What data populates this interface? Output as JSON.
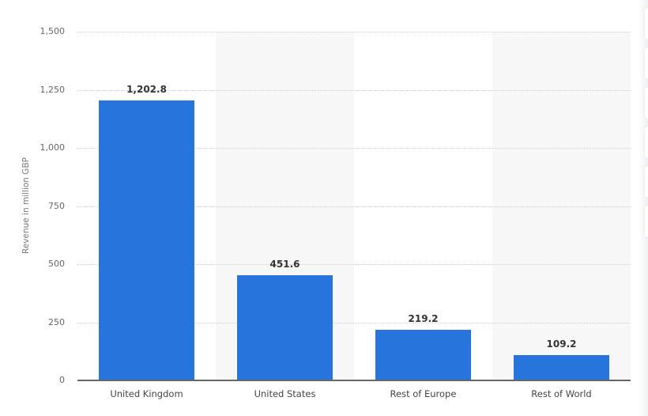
{
  "chart_data": {
    "type": "bar",
    "title": "",
    "xlabel": "",
    "ylabel": "Revenue in million GBP",
    "categories": [
      "United Kingdom",
      "United States",
      "Rest of Europe",
      "Rest of World"
    ],
    "values": [
      1202.8,
      451.6,
      219.2,
      109.2
    ],
    "value_labels": [
      "1,202.8",
      "451.6",
      "219.2",
      "109.2"
    ],
    "ylim": [
      0,
      1500
    ],
    "yticks": [
      0,
      250,
      500,
      750,
      1000,
      1250,
      1500
    ],
    "ytick_labels": [
      "0",
      "250",
      "500",
      "750",
      "1,000",
      "1,250",
      "1,500"
    ],
    "grid": true,
    "legend": null,
    "bar_color": "#2775dc"
  }
}
